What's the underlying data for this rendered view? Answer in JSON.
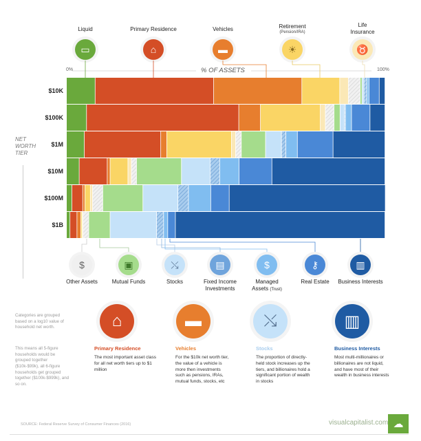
{
  "axis": {
    "left": "0%",
    "title": "% OF ASSETS",
    "right": "100%",
    "y_title": [
      "NET",
      "WORTH",
      "TIER"
    ]
  },
  "categories": [
    {
      "name": "Liquid",
      "color": "#6aa93c",
      "icon": "cash-icon"
    },
    {
      "name": "Primary Residence",
      "color": "#d44e26",
      "icon": "house-icon"
    },
    {
      "name": "Vehicles",
      "color": "#e77e2e",
      "icon": "car-icon"
    },
    {
      "name": "Retirement",
      "sub": "(Pension/IRA)",
      "color": "#fad565",
      "icon": "beach-icon"
    },
    {
      "name": "Life Insurance",
      "color": "#fbe8b6",
      "icon": "piggy-bank-icon"
    },
    {
      "name": "Other Assets",
      "color": "#e4e4e4",
      "icon": "dollar-network-icon",
      "hatched": true
    },
    {
      "name": "Mutual Funds",
      "color": "#a5dc8c",
      "icon": "briefcase-icon"
    },
    {
      "name": "Stocks",
      "color": "#c5e2f9",
      "icon": "stock-chart-icon"
    },
    {
      "name": "Fixed Income Investments",
      "color": "#8fb8e0",
      "icon": "bonds-icon",
      "hatched": true
    },
    {
      "name": "Managed Assets",
      "sub": "(Trust)",
      "color": "#80bdf0",
      "icon": "money-bag-icon"
    },
    {
      "name": "Real Estate",
      "color": "#4a88d6",
      "icon": "key-icon"
    },
    {
      "name": "Business Interests",
      "color": "#1f5ba3",
      "icon": "contract-icon"
    }
  ],
  "chart_data": {
    "type": "bar",
    "stacked": true,
    "orientation": "horizontal",
    "title": "% OF ASSETS",
    "ylabel": "NET WORTH TIER",
    "xlim": [
      0,
      100
    ],
    "categories": [
      "$10K",
      "$100K",
      "$1M",
      "$10M",
      "$100M",
      "$1B"
    ],
    "series": [
      {
        "name": "Liquid",
        "values": [
          9.0,
          6.3,
          5.6,
          4.0,
          1.7,
          1.1
        ]
      },
      {
        "name": "Primary Residence",
        "values": [
          37.2,
          47.8,
          24.0,
          8.8,
          3.4,
          2.2
        ]
      },
      {
        "name": "Vehicles",
        "values": [
          27.7,
          6.8,
          1.9,
          0.9,
          0.7,
          1.2
        ]
      },
      {
        "name": "Retirement (Pension/IRA)",
        "values": [
          11.9,
          18.8,
          20.3,
          5.6,
          1.7,
          0.4
        ]
      },
      {
        "name": "Life Insurance",
        "values": [
          2.7,
          1.6,
          1.3,
          1.1,
          0.7,
          0.3
        ]
      },
      {
        "name": "Other Assets",
        "values": [
          3.7,
          2.7,
          1.8,
          1.6,
          3.2,
          1.8
        ]
      },
      {
        "name": "Mutual Funds",
        "values": [
          0.6,
          1.9,
          7.6,
          14.1,
          12.6,
          6.7
        ]
      },
      {
        "name": "Stocks",
        "values": [
          0.6,
          1.4,
          5.0,
          9.0,
          11.0,
          14.6
        ]
      },
      {
        "name": "Fixed Income Investments",
        "values": [
          0.9,
          0.3,
          1.4,
          3.0,
          3.3,
          2.2
        ]
      },
      {
        "name": "Managed Assets (Trust)",
        "values": [
          0.7,
          1.9,
          3.6,
          6.1,
          7.0,
          1.3
        ]
      },
      {
        "name": "Real Estate",
        "values": [
          3.2,
          5.8,
          11.2,
          10.3,
          5.8,
          2.4
        ]
      },
      {
        "name": "Business Interests",
        "values": [
          1.8,
          4.7,
          16.3,
          35.5,
          49.0,
          65.8
        ]
      }
    ]
  },
  "notes": [
    "Categories are grouped based on a log10 value of household net worth.",
    "This means all 5-figure households would be grouped together ($10k-$99k), all 6-figure households get grouped together ($100k-$999k), and so on."
  ],
  "cards": [
    {
      "title": "Primary Residence",
      "color": "#d44e26",
      "text": "The most important asset class for all net worth tiers up to $1 million"
    },
    {
      "title": "Vehicles",
      "color": "#e77e2e",
      "text": "For the $10k net worth tier, the value of a vehicle is more then investments such as pensions, IRAs, mutual funds, stocks, etc"
    },
    {
      "title": "Stocks",
      "color": "#a9cdee",
      "text": "The proportion of directly-held stock increases up the tiers, and billionaires hold a significant portion of wealth in stocks"
    },
    {
      "title": "Business Interests",
      "color": "#1f5ba3",
      "text": "Most multi-millionaires or billionaires are not liquid, and have most of their wealth in business interests"
    }
  ],
  "footer": {
    "source": "SOURCE: Federal Reserve Survey of Consumer Finances (2016)",
    "brand": "visualcapitalist.com"
  }
}
